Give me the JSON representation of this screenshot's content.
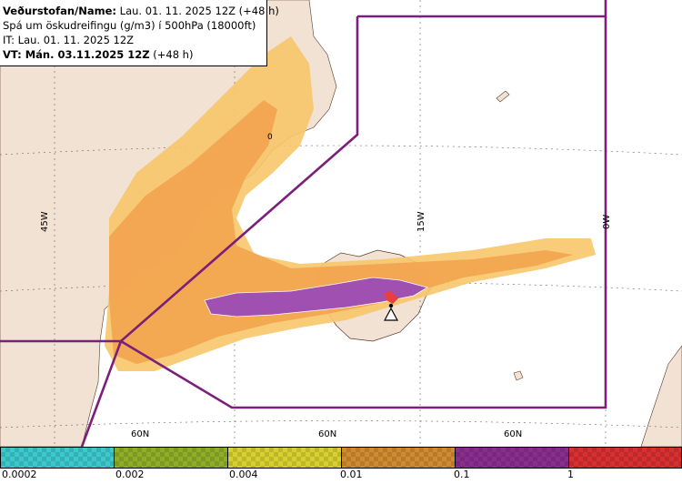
{
  "info": {
    "line1_bold": "Veðurstofan/Name:",
    "line1_rest": " Lau. 01. 11. 2025 12Z (+48 h)",
    "line2": "Spá um öskudreifingu (g/m3) í 500hPa (18000ft)",
    "line3": "IT: Lau. 01. 11. 2025 12Z",
    "line4_bold": "VT: Mán. 03.11.2025 12Z",
    "line4_rest": " (+48 h)"
  },
  "grid_labels": {
    "lon_45w": "45W",
    "lon_15w": "15W",
    "lon_0w": "0W",
    "lat_60n_a": "60N",
    "lat_60n_b": "60N",
    "lat_60n_c": "60N",
    "contour_marker": "0"
  },
  "legend": {
    "levels": [
      "0.0002",
      "0.002",
      "0.004",
      "0.01",
      "0.1",
      "1"
    ],
    "colors": [
      "#3cc8cc",
      "#8fae28",
      "#d8d030",
      "#d08a30",
      "#8a2e8e",
      "#d83030"
    ]
  },
  "map_colors": {
    "land": "#f1e2d4",
    "sea": "#ffffff",
    "fir_boundary": "#7a1f7a",
    "ash_low": "#f7c66a",
    "ash_mid": "#f2a550",
    "ash_high": "#a050b0",
    "ash_peak": "#e84040"
  },
  "icons": {
    "volcano": "volcano-warning-icon"
  }
}
